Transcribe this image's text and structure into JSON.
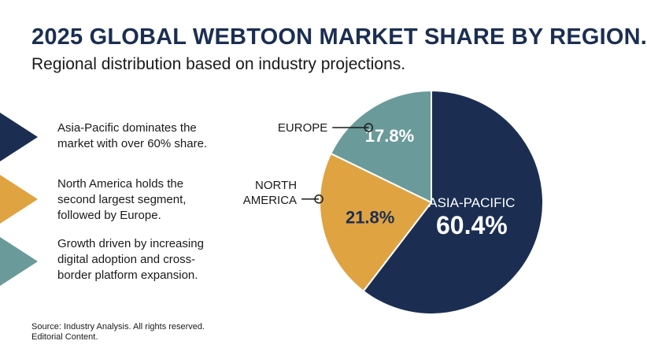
{
  "title": "2025 GLOBAL WEBTOON MARKET SHARE BY REGION.",
  "subtitle": "Regional distribution based on industry projections.",
  "bullets": [
    {
      "text": "Asia-Pacific dominates the market with over 60% share.",
      "color": "#1b2e52"
    },
    {
      "text": "North America holds the second largest segment, followed by Europe.",
      "color": "#e0a342"
    },
    {
      "text": "Growth driven by increasing digital adoption and cross-border platform expansion.",
      "color": "#6a9a9a"
    }
  ],
  "source": {
    "line1": "Source: Industry Analysis. All rights reserved.",
    "line2": "Editorial Content."
  },
  "chart_data": {
    "type": "pie",
    "slices": [
      {
        "label": "ASIA-PACIFIC",
        "value": 60.4,
        "value_label": "60.4%",
        "color": "#1b2e52",
        "label_placement": "inside"
      },
      {
        "label": "NORTH AMERICA",
        "value": 21.8,
        "value_label": "21.8%",
        "color": "#e0a342",
        "label_placement": "callout-left"
      },
      {
        "label": "EUROPE",
        "value": 17.8,
        "value_label": "17.8%",
        "color": "#6a9a9a",
        "label_placement": "callout-top-left"
      }
    ]
  }
}
